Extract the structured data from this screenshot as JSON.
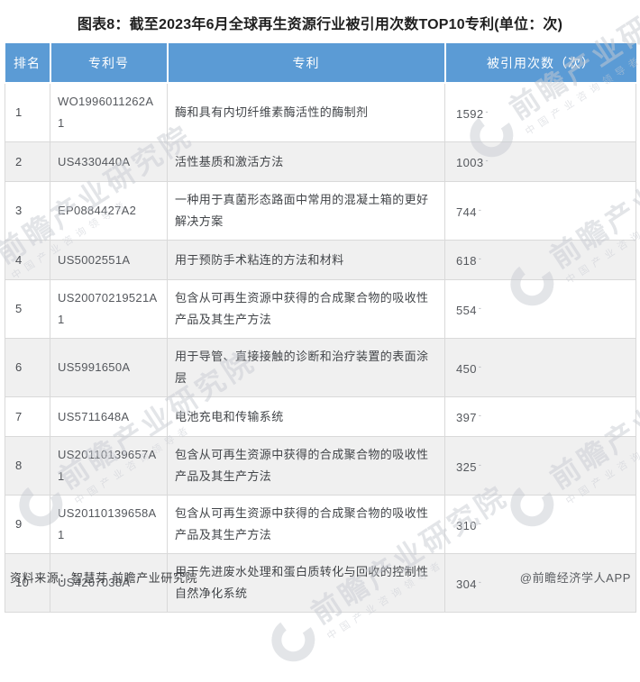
{
  "chart_data": {
    "type": "table",
    "title": "图表8：截至2023年6月全球再生资源行业被引用次数TOP10专利(单位：次)",
    "columns": [
      "排名",
      "专利号",
      "专利",
      "被引用次数（次）"
    ],
    "rows": [
      {
        "rank": "1",
        "patent_no": "WO1996011262A1",
        "patent": "酶和具有内切纤维素酶活性的酶制剂",
        "citations": "1592"
      },
      {
        "rank": "2",
        "patent_no": "US4330440A",
        "patent": "活性基质和激活方法",
        "citations": "1003"
      },
      {
        "rank": "3",
        "patent_no": "EP0884427A2",
        "patent": "一种用于真菌形态路面中常用的混凝土箱的更好解决方案",
        "citations": "744"
      },
      {
        "rank": "4",
        "patent_no": "US5002551A",
        "patent": "用于预防手术粘连的方法和材料",
        "citations": "618"
      },
      {
        "rank": "5",
        "patent_no": "US20070219521A1",
        "patent": "包含从可再生资源中获得的合成聚合物的吸收性产品及其生产方法",
        "citations": "554"
      },
      {
        "rank": "6",
        "patent_no": "US5991650A",
        "patent": "用于导管、直接接触的诊断和治疗装置的表面涂层",
        "citations": "450"
      },
      {
        "rank": "7",
        "patent_no": "US5711648A",
        "patent": "电池充电和传输系统",
        "citations": "397"
      },
      {
        "rank": "8",
        "patent_no": "US20110139657A1",
        "patent": "包含从可再生资源中获得的合成聚合物的吸收性产品及其生产方法",
        "citations": "325"
      },
      {
        "rank": "9",
        "patent_no": "US20110139658A1",
        "patent": "包含从可再生资源中获得的合成聚合物的吸收性产品及其生产方法",
        "citations": "310"
      },
      {
        "rank": "10",
        "patent_no": "US4267038A",
        "patent": "用于先进废水处理和蛋白质转化与回收的控制性自然净化系统",
        "citations": "304"
      }
    ],
    "citation_suffix": "-"
  },
  "footer": {
    "source": "资料来源：智慧芽 前瞻产业研究院",
    "credit": "@前瞻经济学人APP"
  },
  "watermark": {
    "text": "前瞻产业研究院",
    "subtext": "中国产业咨询领导者"
  },
  "colors": {
    "header_bg": "#5B9BD5",
    "header_text": "#FFFFFF",
    "row_alt_bg": "#F0F0F0",
    "border": "#D9D9D9",
    "body_text": "#424549",
    "title_text": "#1F1F1F"
  }
}
